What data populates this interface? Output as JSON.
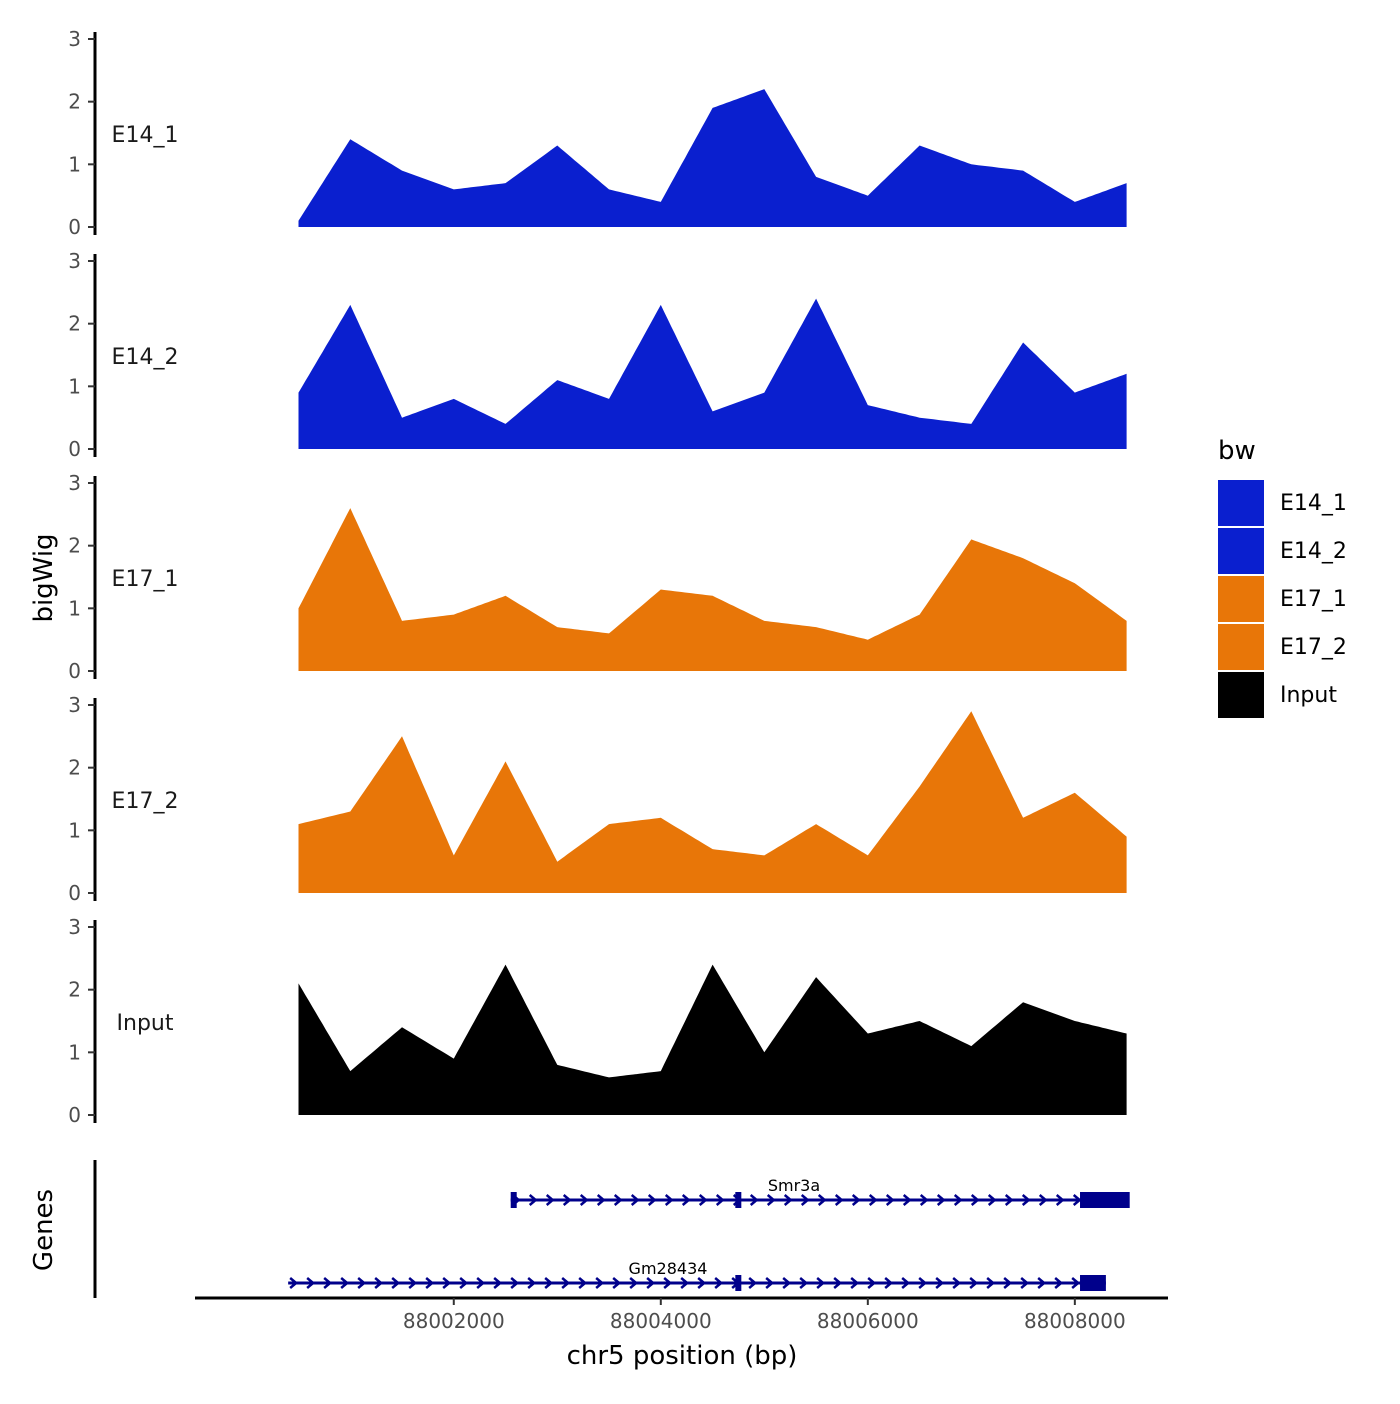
{
  "chart_data": {
    "type": "area",
    "title": "",
    "ylabel": "bigWig",
    "xlabel": "chr5 position (bp)",
    "genes_label": "Genes",
    "ylim": [
      0,
      3
    ],
    "yticks": [
      0,
      1,
      2,
      3
    ],
    "xlim": [
      87999500,
      88008900
    ],
    "xticks": [
      88002000,
      88004000,
      88006000,
      88008000
    ],
    "x": [
      88000500,
      88001000,
      88001500,
      88002000,
      88002500,
      88003000,
      88003500,
      88004000,
      88004500,
      88005000,
      88005500,
      88006000,
      88006500,
      88007000,
      88007500,
      88008000,
      88008500
    ],
    "series": [
      {
        "name": "E14_1",
        "color": "#0a1fcf",
        "values": [
          0.1,
          1.4,
          0.9,
          0.6,
          0.7,
          1.3,
          0.6,
          0.4,
          1.9,
          2.2,
          0.8,
          0.5,
          1.3,
          1.0,
          0.9,
          0.4,
          0.7
        ]
      },
      {
        "name": "E14_2",
        "color": "#0a1fcf",
        "values": [
          0.9,
          2.3,
          0.5,
          0.8,
          0.4,
          1.1,
          0.8,
          2.3,
          0.6,
          0.9,
          2.4,
          0.7,
          0.5,
          0.4,
          1.7,
          0.9,
          1.2
        ]
      },
      {
        "name": "E17_1",
        "color": "#e87608",
        "values": [
          1.0,
          2.6,
          0.8,
          0.9,
          1.2,
          0.7,
          0.6,
          1.3,
          1.2,
          0.8,
          0.7,
          0.5,
          0.9,
          2.1,
          1.8,
          1.4,
          0.8
        ]
      },
      {
        "name": "E17_2",
        "color": "#e87608",
        "values": [
          1.1,
          1.3,
          2.5,
          0.6,
          2.1,
          0.5,
          1.1,
          1.2,
          0.7,
          0.6,
          1.1,
          0.6,
          1.7,
          2.9,
          1.2,
          1.6,
          0.9
        ]
      },
      {
        "name": "Input",
        "color": "#000000",
        "values": [
          2.1,
          0.7,
          1.4,
          0.9,
          2.4,
          0.8,
          0.6,
          0.7,
          2.4,
          1.0,
          2.2,
          1.3,
          1.5,
          1.1,
          1.8,
          1.5,
          1.3
        ]
      }
    ],
    "legend": {
      "title": "bw",
      "position": "right",
      "entries": [
        {
          "label": "E14_1",
          "color": "#0a1fcf"
        },
        {
          "label": "E14_2",
          "color": "#0a1fcf"
        },
        {
          "label": "E17_1",
          "color": "#e87608"
        },
        {
          "label": "E17_2",
          "color": "#e87608"
        },
        {
          "label": "Input",
          "color": "#000000"
        }
      ]
    },
    "genes": [
      {
        "name": "Smr3a",
        "start": 88002550,
        "end": 88008500,
        "strand": "+",
        "exons": [
          [
            88002550,
            88002600
          ],
          [
            88004720,
            88004770
          ],
          [
            88008050,
            88008530
          ]
        ],
        "color": "#00008b"
      },
      {
        "name": "Gm28434",
        "start": 88000400,
        "end": 88008300,
        "strand": "+",
        "exons": [
          [
            88004720,
            88004770
          ],
          [
            88008050,
            88008300
          ]
        ],
        "color": "#00008b"
      }
    ]
  }
}
